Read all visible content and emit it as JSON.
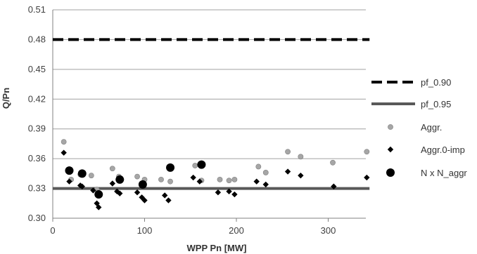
{
  "chart_data": {
    "type": "scatter",
    "xlabel": "WPP Pn [MW]",
    "ylabel": "Q/Pn",
    "xlim": [
      0,
      350
    ],
    "ylim": [
      0.3,
      0.51
    ],
    "xticks": [
      "0",
      "100",
      "200",
      "300"
    ],
    "yticks": [
      "0.30",
      "0.33",
      "0.36",
      "0.39",
      "0.42",
      "0.45",
      "0.48",
      "0.51"
    ],
    "grid": "horizontal",
    "legend_position": "right",
    "series": [
      {
        "name": "pf_0.90",
        "kind": "line",
        "style": "dashed",
        "color": "#000000",
        "x": [
          0,
          345
        ],
        "y": [
          0.48,
          0.48
        ]
      },
      {
        "name": "pf_0.95",
        "kind": "line",
        "style": "solid",
        "color": "#595959",
        "x": [
          0,
          345
        ],
        "y": [
          0.33,
          0.33
        ]
      },
      {
        "name": "Aggr.",
        "kind": "scatter",
        "marker": "circle",
        "color": "#a6a6a6",
        "x": [
          12,
          20,
          30,
          42,
          48,
          65,
          72,
          92,
          100,
          118,
          128,
          155,
          162,
          182,
          192,
          198,
          224,
          232,
          256,
          270,
          305,
          342
        ],
        "y": [
          0.377,
          0.339,
          0.344,
          0.343,
          0.329,
          0.35,
          0.342,
          0.342,
          0.339,
          0.339,
          0.337,
          0.353,
          0.338,
          0.339,
          0.338,
          0.339,
          0.352,
          0.346,
          0.367,
          0.362,
          0.356,
          0.367
        ]
      },
      {
        "name": "Aggr.0-imp",
        "kind": "scatter",
        "marker": "diamond",
        "color": "#000000",
        "x": [
          12,
          18,
          30,
          32,
          44,
          48,
          50,
          65,
          70,
          73,
          92,
          97,
          100,
          122,
          126,
          153,
          160,
          180,
          192,
          198,
          222,
          232,
          256,
          270,
          306,
          342
        ],
        "y": [
          0.366,
          0.337,
          0.333,
          0.332,
          0.328,
          0.315,
          0.311,
          0.335,
          0.327,
          0.325,
          0.326,
          0.321,
          0.318,
          0.323,
          0.318,
          0.341,
          0.337,
          0.326,
          0.327,
          0.324,
          0.337,
          0.334,
          0.347,
          0.343,
          0.332,
          0.341
        ]
      },
      {
        "name": "N x N_aggr",
        "kind": "scatter",
        "marker": "big-circle",
        "color": "#000000",
        "x": [
          18,
          32,
          50,
          73,
          98,
          128,
          162
        ],
        "y": [
          0.348,
          0.345,
          0.324,
          0.339,
          0.334,
          0.351,
          0.354
        ]
      }
    ]
  }
}
